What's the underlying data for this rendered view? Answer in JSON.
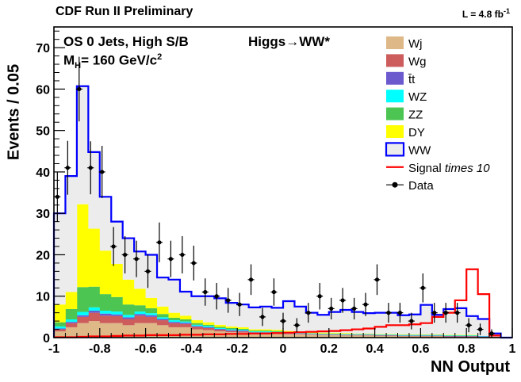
{
  "header": {
    "experiment": "CDF Run II Preliminary",
    "lumi_prefix": "L = 4.8 fb",
    "lumi_exp": "-1"
  },
  "annotations": {
    "selection": "OS 0 Jets, High S/B",
    "process": "Higgs→WW*",
    "mass_pre": "M",
    "mass_sub": "H",
    "mass_mid": "= 160 GeV/c",
    "mass_sup": "2"
  },
  "chart_data": {
    "type": "bar",
    "subtype": "stacked-histogram",
    "xlabel": "NN Output",
    "ylabel": "Events / 0.05",
    "xlim": [
      -1,
      1
    ],
    "ylim": [
      0,
      75
    ],
    "bin_width": 0.05,
    "x_ticks": [
      "-1",
      "-0.8",
      "-0.6",
      "-0.4",
      "-0.2",
      "0",
      "0.2",
      "0.4",
      "0.6",
      "0.8",
      "1"
    ],
    "y_ticks": [
      "0",
      "10",
      "20",
      "30",
      "40",
      "50",
      "60",
      "70"
    ],
    "bin_edges": [
      -1.0,
      -0.95,
      -0.9,
      -0.85,
      -0.8,
      -0.75,
      -0.7,
      -0.65,
      -0.6,
      -0.55,
      -0.5,
      -0.45,
      -0.4,
      -0.35,
      -0.3,
      -0.25,
      -0.2,
      -0.15,
      -0.1,
      -0.05,
      0.0,
      0.05,
      0.1,
      0.15,
      0.2,
      0.25,
      0.3,
      0.35,
      0.4,
      0.45,
      0.5,
      0.55,
      0.6,
      0.65,
      0.7,
      0.75,
      0.8,
      0.85,
      0.9,
      0.95
    ],
    "stacked_series": [
      {
        "name": "Wj",
        "color": "#deb887",
        "values": [
          1.5,
          2.5,
          3.5,
          4.0,
          3.5,
          3.5,
          3.0,
          3.5,
          3.5,
          3.0,
          2.5,
          2.5,
          2.0,
          1.8,
          1.5,
          1.3,
          1.2,
          1.0,
          1.0,
          1.0,
          0.8,
          0.8,
          0.7,
          0.6,
          0.6,
          0.5,
          0.5,
          0.5,
          0.4,
          0.4,
          0.3,
          0.3,
          0.3,
          0.3,
          0.2,
          0.2,
          0.2,
          0.1,
          0.1
        ]
      },
      {
        "name": "Wg",
        "color": "#cd5c5c",
        "values": [
          0.5,
          1.0,
          1.5,
          2.0,
          1.8,
          1.7,
          1.5,
          1.8,
          1.5,
          1.2,
          1.0,
          0.8,
          0.6,
          0.5,
          0.4,
          0.3,
          0.3,
          0.2,
          0.2,
          0.2,
          0.1,
          0.1,
          0.1,
          0.1,
          0.1,
          0.1,
          0.1,
          0.1,
          0.1,
          0.1,
          0.1,
          0.1,
          0.1,
          0.1,
          0.1,
          0.1,
          0.1,
          0.1,
          0.1
        ]
      },
      {
        "name": "t̄t",
        "color": "#6a5acd",
        "values": [
          0.2,
          0.3,
          0.4,
          0.5,
          0.5,
          0.4,
          0.4,
          0.4,
          0.4,
          0.3,
          0.3,
          0.3,
          0.2,
          0.2,
          0.2,
          0.2,
          0.2,
          0.1,
          0.1,
          0.1,
          0.1,
          0.1,
          0.1,
          0.1,
          0.1,
          0.1,
          0.1,
          0.1,
          0.1,
          0.1,
          0.1,
          0.1,
          0.1,
          0.1,
          0.1,
          0.1,
          0.1,
          0.1,
          0.0
        ]
      },
      {
        "name": "WZ",
        "color": "#00ffff",
        "values": [
          0.5,
          0.6,
          0.8,
          0.8,
          0.7,
          0.7,
          0.6,
          0.6,
          0.5,
          0.4,
          0.4,
          0.3,
          0.3,
          0.3,
          0.2,
          0.2,
          0.2,
          0.2,
          0.2,
          0.1,
          0.1,
          0.1,
          0.1,
          0.1,
          0.1,
          0.1,
          0.1,
          0.1,
          0.1,
          0.1,
          0.1,
          0.1,
          0.1,
          0.1,
          0.1,
          0.1,
          0.1,
          0.1,
          0.0
        ]
      },
      {
        "name": "ZZ",
        "color": "#4cc552",
        "values": [
          1.0,
          2.5,
          6.0,
          5.0,
          4.0,
          3.5,
          2.5,
          1.5,
          1.2,
          0.8,
          0.6,
          0.5,
          0.4,
          0.3,
          0.3,
          0.3,
          0.2,
          0.2,
          0.2,
          0.2,
          0.2,
          0.2,
          0.1,
          0.1,
          0.1,
          0.1,
          0.1,
          0.1,
          0.1,
          0.1,
          0.1,
          0.1,
          0.1,
          0.1,
          0.1,
          0.1,
          0.1,
          0.0,
          0.0
        ]
      },
      {
        "name": "DY",
        "color": "#ffff00",
        "values": [
          4.3,
          4.1,
          20.0,
          14.0,
          10.5,
          8.0,
          6.0,
          4.0,
          2.5,
          1.8,
          1.2,
          0.9,
          0.7,
          0.6,
          0.5,
          0.4,
          0.4,
          0.3,
          0.3,
          0.3,
          0.3,
          0.2,
          0.2,
          0.2,
          0.2,
          0.2,
          0.1,
          0.1,
          0.1,
          0.1,
          0.1,
          0.1,
          0.1,
          0.1,
          0.1,
          0.1,
          0.1,
          0.0,
          0.0
        ]
      },
      {
        "name": "WW",
        "color": "#ececec",
        "edge_color": "#0000ff",
        "values": [
          22.0,
          28.0,
          28.5,
          18.5,
          13.0,
          10.2,
          10.0,
          9.0,
          10.4,
          7.0,
          8.0,
          5.8,
          5.8,
          6.3,
          6.4,
          5.7,
          5.5,
          5.3,
          5.5,
          5.3,
          7.2,
          6.0,
          4.7,
          4.3,
          5.0,
          5.6,
          5.2,
          4.9,
          5.1,
          5.1,
          4.6,
          4.8,
          7.1,
          4.7,
          6.2,
          6.4,
          4.5,
          4.1,
          0.8
        ]
      }
    ],
    "signal": {
      "name": "Signal",
      "name_suffix": "times 10",
      "color": "#ff0000",
      "values": [
        0.1,
        0.1,
        0.2,
        0.3,
        0.3,
        0.4,
        0.5,
        0.5,
        0.6,
        0.6,
        0.6,
        0.7,
        0.7,
        0.8,
        0.8,
        0.9,
        0.9,
        1.0,
        1.0,
        1.1,
        1.2,
        1.3,
        1.4,
        1.5,
        1.6,
        1.8,
        2.0,
        2.2,
        2.6,
        3.0,
        3.0,
        3.2,
        3.5,
        5.0,
        6.0,
        9.0,
        16.5,
        10.5,
        0.5
      ]
    },
    "data": {
      "name": "Data",
      "x": [
        -0.985,
        -0.94,
        -0.89,
        -0.84,
        -0.79,
        -0.74,
        -0.69,
        -0.64,
        -0.59,
        -0.54,
        -0.49,
        -0.44,
        -0.39,
        -0.34,
        -0.29,
        -0.24,
        -0.19,
        -0.14,
        -0.09,
        -0.04,
        0.0,
        0.06,
        0.11,
        0.16,
        0.21,
        0.26,
        0.31,
        0.36,
        0.41,
        0.46,
        0.51,
        0.56,
        0.61,
        0.66,
        0.71,
        0.76,
        0.81,
        0.86,
        0.91
      ],
      "y": [
        34,
        41,
        60,
        41,
        40,
        22,
        20,
        19,
        16,
        23,
        19,
        20,
        18,
        11,
        10,
        9,
        8,
        14,
        5,
        11,
        4,
        3,
        6,
        10,
        7,
        9,
        7,
        8,
        14,
        6,
        6,
        4,
        12,
        6,
        6,
        6,
        3,
        2,
        1
      ],
      "yerr": [
        6,
        6.5,
        7.8,
        6.4,
        6.3,
        4.7,
        4.5,
        4.4,
        4,
        4.8,
        4.4,
        4.5,
        4.2,
        3.3,
        3.2,
        3,
        2.8,
        3.7,
        2.2,
        3.3,
        2,
        1.7,
        2.4,
        3.2,
        2.6,
        3,
        2.6,
        2.8,
        3.7,
        2.4,
        2.4,
        2,
        3.5,
        2.4,
        2.4,
        2.4,
        1.7,
        1.4,
        1
      ]
    },
    "legend_position": "top-right",
    "grid": false
  }
}
